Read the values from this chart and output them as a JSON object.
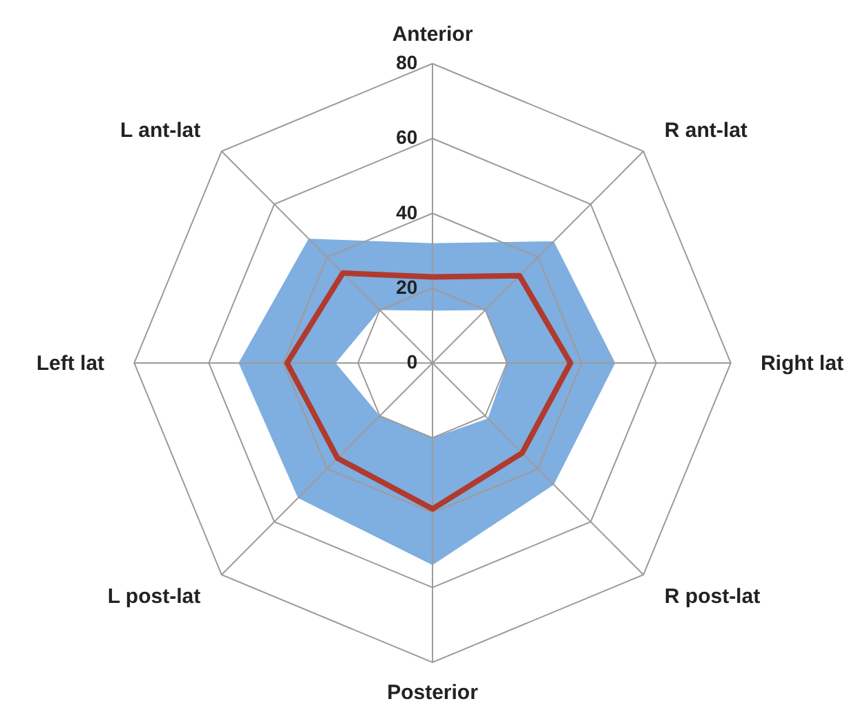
{
  "chart_data": {
    "type": "radar",
    "categories": [
      "Anterior",
      "R ant-lat",
      "Right lat",
      "R post-lat",
      "Posterior",
      "L post-lat",
      "Left lat",
      "L ant-lat"
    ],
    "ylim": [
      0,
      80
    ],
    "yticks": [
      0,
      20,
      40,
      60,
      80
    ],
    "grid": true,
    "marker": "none",
    "series": [
      {
        "type": "area",
        "color": "#7faee0",
        "values": [
          32,
          46,
          49,
          46,
          54,
          51,
          52,
          47
        ]
      },
      {
        "type": "area",
        "color": "#ffffff",
        "values": [
          14,
          20,
          20,
          21,
          20,
          20,
          26,
          20
        ]
      },
      {
        "color": "#b03a2e",
        "values": [
          23,
          33,
          37,
          34,
          39,
          36,
          39,
          34
        ]
      }
    ]
  }
}
